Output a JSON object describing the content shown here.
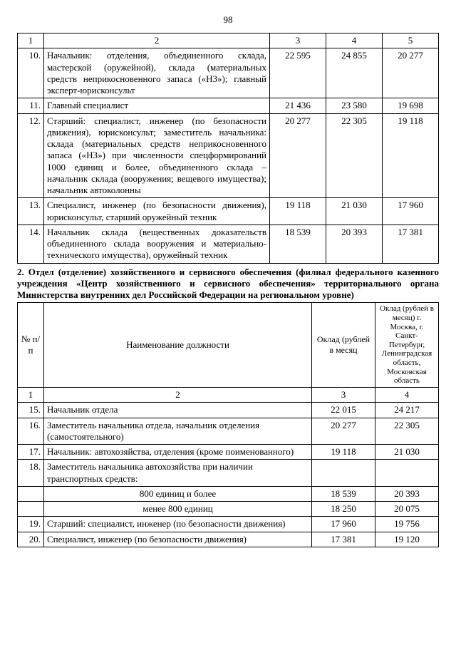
{
  "page_number": "98",
  "table1": {
    "header_cols": [
      "1",
      "2",
      "3",
      "4",
      "5"
    ],
    "rows": [
      {
        "n": "10.",
        "desc": "Начальник: отделения, объединенного склада, мастерской (оружейной), склада (материальных средств неприкосновенного запаса («НЗ»); главный эксперт-юрисконсульт",
        "c3": "22 595",
        "c4": "24 855",
        "c5": "20 277"
      },
      {
        "n": "11.",
        "desc": "Главный специалист",
        "c3": "21 436",
        "c4": "23 580",
        "c5": "19 698"
      },
      {
        "n": "12.",
        "desc": "Старший: специалист, инженер (по безопасности движения), юрисконсульт; заместитель начальника: склада (материальных средств неприкосновенного запаса («НЗ») при численности спецформирований 1000 единиц и более, объединенного склада – начальник склада (вооружения; вещевого имущества); начальник автоколонны",
        "c3": "20 277",
        "c4": "22 305",
        "c5": "19 118"
      },
      {
        "n": "13.",
        "desc": "Специалист, инженер (по безопасности движения), юрисконсульт, старший оружейный техник",
        "c3": "19 118",
        "c4": "21 030",
        "c5": "17 960"
      },
      {
        "n": "14.",
        "desc": "Начальник склада (вещественных доказательств объединенного склада вооружения и материально-технического имущества), оружейный техник",
        "c3": "18 539",
        "c4": "20 393",
        "c5": "17 381"
      }
    ]
  },
  "section2_title": "2. Отдел (отделение) хозяйственного и сервисного обеспечения (филиал федерального казенного учреждения «Центр хозяйственного и сервисного обеспечения» территориального органа Министерства внутренних дел Российской Федерации на региональном уровне)",
  "table2": {
    "head": {
      "c1": "№ п/п",
      "c2": "Наименование должности",
      "c3": "Оклад (рублей в месяц",
      "c4": "Оклад (рублей в месяц) г. Москва, г. Санкт-Петербург, Ленинградская область, Московская область"
    },
    "num_row": {
      "c1": "1",
      "c2": "2",
      "c3": "3",
      "c4": "4"
    },
    "rows": [
      {
        "n": "15.",
        "desc": "Начальник отдела",
        "c3": "22 015",
        "c4": "24 217"
      },
      {
        "n": "16.",
        "desc": "Заместитель начальника отдела, начальник отделения (самостоятельного)",
        "c3": "20 277",
        "c4": "22 305"
      },
      {
        "n": "17.",
        "desc": "Начальник: автохозяйства, отделения (кроме поименованного)",
        "c3": "19 118",
        "c4": "21 030"
      },
      {
        "n": "18.",
        "desc": "Заместитель начальника автохозяйства при наличии транспортных средств:",
        "c3": "",
        "c4": ""
      },
      {
        "n": "",
        "desc": "800 единиц и более",
        "indent": true,
        "c3": "18 539",
        "c4": "20 393"
      },
      {
        "n": "",
        "desc": "менее 800 единиц",
        "indent": true,
        "c3": "18 250",
        "c4": "20 075"
      },
      {
        "n": "19.",
        "desc": "Старший: специалист, инженер (по безопасности движения)",
        "c3": "17 960",
        "c4": "19 756"
      },
      {
        "n": "20.",
        "desc": "Специалист, инженер (по безопасности движения)",
        "c3": "17 381",
        "c4": "19 120"
      }
    ]
  }
}
